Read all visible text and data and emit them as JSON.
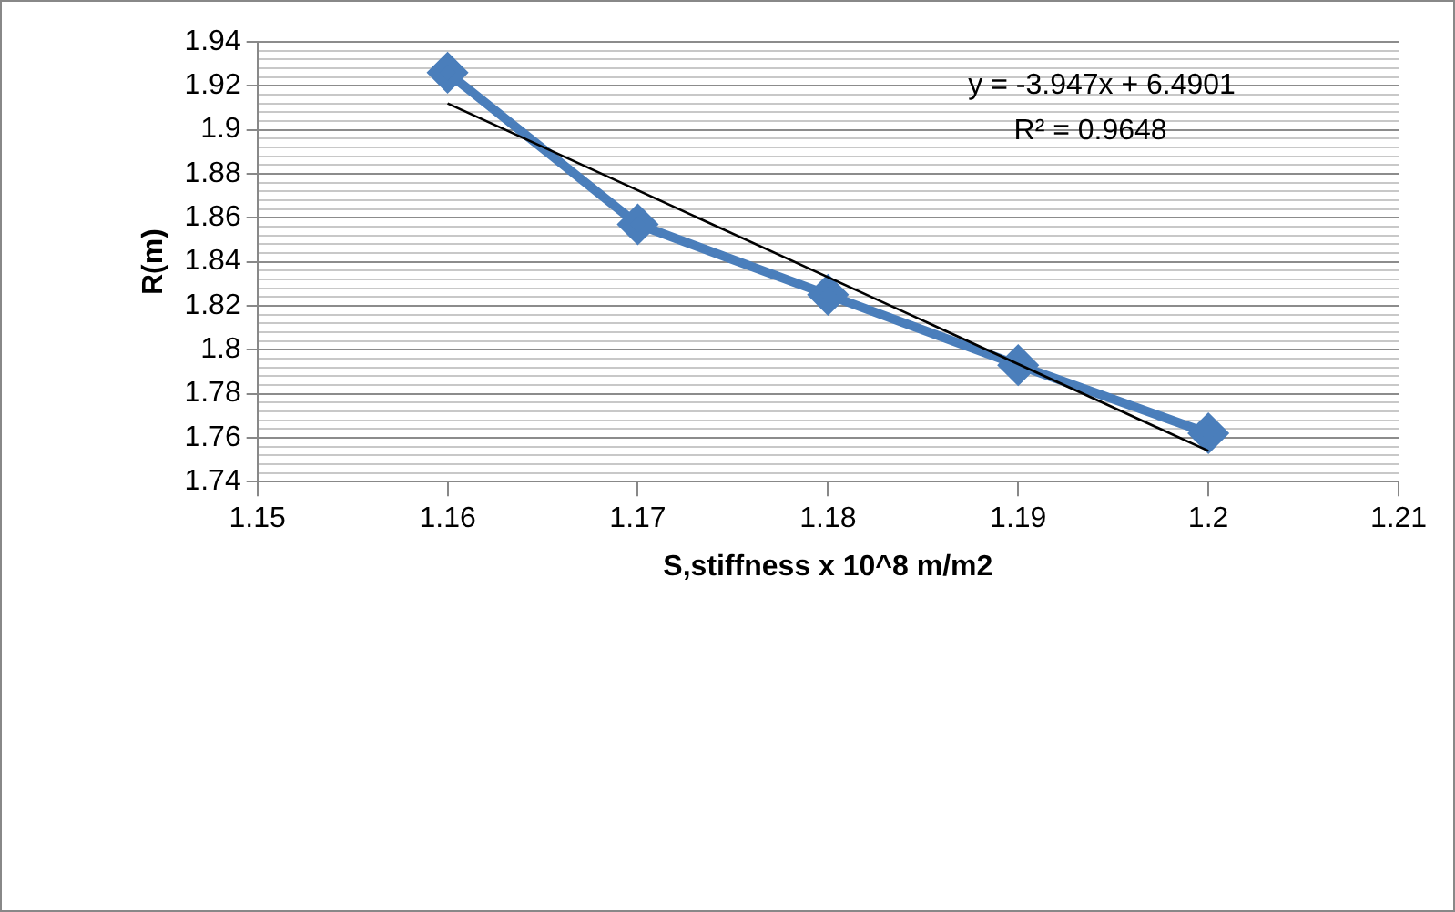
{
  "chart_data": {
    "type": "line",
    "xlabel": "S,stiffness x 10^8 m/m2",
    "ylabel": "R(m)",
    "xlim": [
      1.15,
      1.21
    ],
    "xticks": [
      1.15,
      1.16,
      1.17,
      1.18,
      1.19,
      1.2,
      1.21
    ],
    "ylim": [
      1.74,
      1.94
    ],
    "yticks": [
      1.74,
      {
        "value": 1.744,
        "label": null
      },
      {
        "value": 1.748,
        "label": null
      },
      {
        "value": 1.752,
        "label": null
      },
      {
        "value": 1.756,
        "label": null
      },
      1.76,
      {
        "value": 1.764,
        "label": null
      },
      {
        "value": 1.768,
        "label": null
      },
      {
        "value": 1.772,
        "label": null
      },
      {
        "value": 1.776,
        "label": null
      },
      1.78,
      {
        "value": 1.784,
        "label": null
      },
      {
        "value": 1.788,
        "label": null
      },
      {
        "value": 1.792,
        "label": null
      },
      {
        "value": 1.796,
        "label": null
      },
      1.8,
      {
        "value": 1.804,
        "label": null
      },
      {
        "value": 1.808,
        "label": null
      },
      {
        "value": 1.812,
        "label": null
      },
      {
        "value": 1.816,
        "label": null
      },
      1.82,
      {
        "value": 1.824,
        "label": null
      },
      {
        "value": 1.828,
        "label": null
      },
      {
        "value": 1.832,
        "label": null
      },
      {
        "value": 1.836,
        "label": null
      },
      1.84,
      {
        "value": 1.844,
        "label": null
      },
      {
        "value": 1.848,
        "label": null
      },
      {
        "value": 1.852,
        "label": null
      },
      {
        "value": 1.856,
        "label": null
      },
      1.86,
      {
        "value": 1.864,
        "label": null
      },
      {
        "value": 1.868,
        "label": null
      },
      {
        "value": 1.872,
        "label": null
      },
      {
        "value": 1.876,
        "label": null
      },
      1.88,
      {
        "value": 1.884,
        "label": null
      },
      {
        "value": 1.888,
        "label": null
      },
      {
        "value": 1.892,
        "label": null
      },
      {
        "value": 1.896,
        "label": null
      },
      1.9,
      {
        "value": 1.904,
        "label": null
      },
      {
        "value": 1.908,
        "label": null
      },
      {
        "value": 1.912,
        "label": null
      },
      {
        "value": 1.916,
        "label": null
      },
      1.92,
      {
        "value": 1.924,
        "label": null
      },
      {
        "value": 1.928,
        "label": null
      },
      {
        "value": 1.932,
        "label": null
      },
      {
        "value": 1.936,
        "label": null
      },
      1.94
    ],
    "grid": "y",
    "legend": false,
    "series": [
      {
        "color": "#4a7ebb",
        "x": [
          1.16,
          1.17,
          1.18,
          1.19,
          1.2
        ],
        "values": [
          1.926,
          1.857,
          1.825,
          1.793,
          1.762
        ],
        "marker": "diamond"
      },
      {
        "type": "line",
        "color": "#000000",
        "x": [
          1.16,
          1.2
        ],
        "values": [
          1.912,
          1.754
        ],
        "marker": "none"
      }
    ],
    "annotations": [
      "y = -3.947x + 6.4901",
      "R² = 0.9648"
    ]
  }
}
